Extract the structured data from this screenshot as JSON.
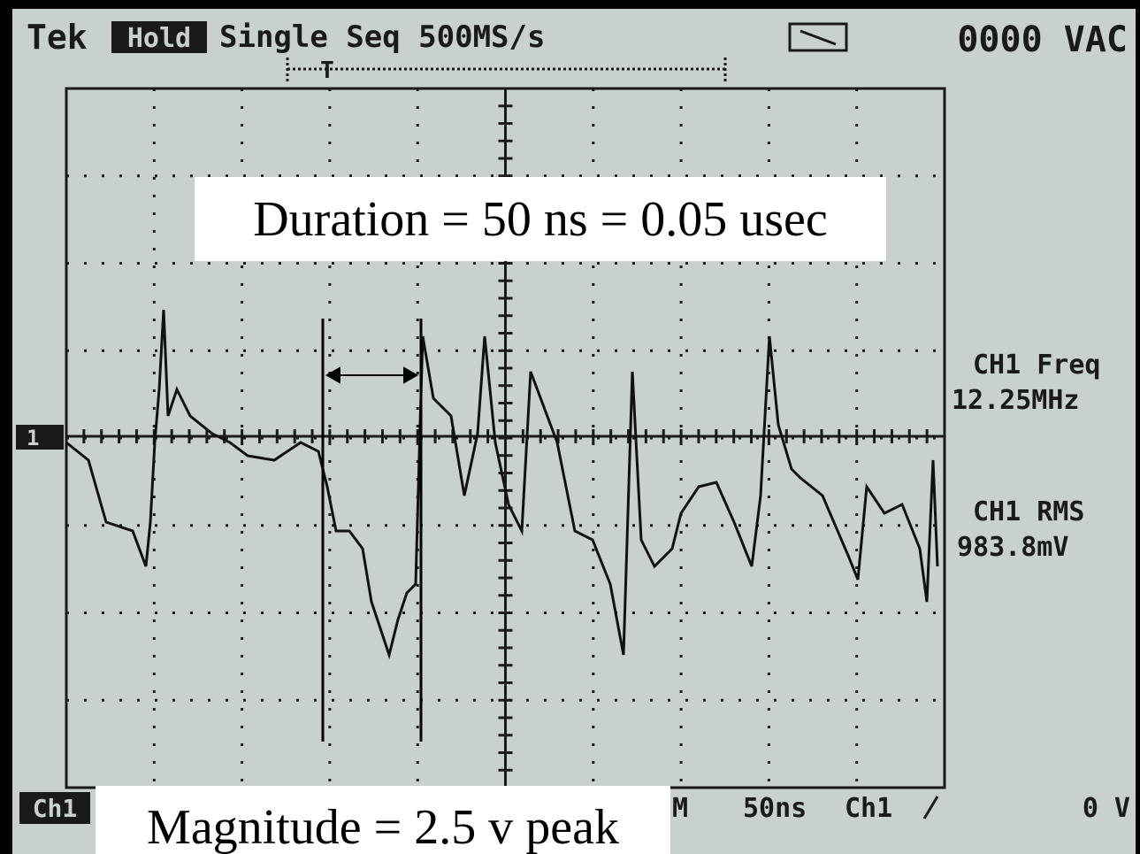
{
  "header": {
    "brand": "Tek",
    "mode": "Hold",
    "acquisition": "Single Seq 500MS/s",
    "meter": "0000 VAC"
  },
  "trigger_marker": "T",
  "channel_marker": "1",
  "annotations": {
    "duration": "Duration = 50 ns = 0.05 usec",
    "magnitude": "Magnitude = 2.5 v peak"
  },
  "measurements": [
    {
      "label": "CH1 Freq",
      "value": "12.25MHz"
    },
    {
      "label": "CH1 RMS",
      "value": "983.8mV"
    }
  ],
  "footer": {
    "channel": "Ch1",
    "timebase_prefix": "M",
    "timebase": "50ns",
    "trigger_source": "Ch1",
    "trigger_level": "0 V"
  }
}
